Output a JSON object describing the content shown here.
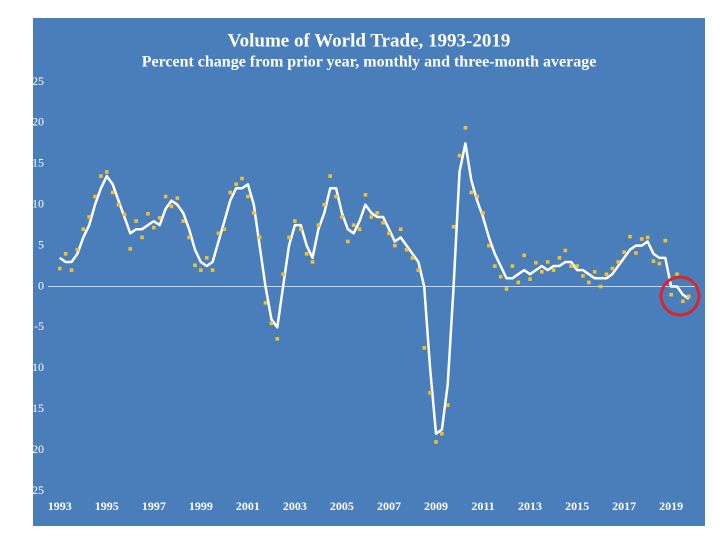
{
  "chart_data": {
    "type": "line",
    "title": "Volume of World Trade, 1993-2019",
    "subtitle": "Percent change from prior year, monthly and three-month average",
    "x": [
      1993,
      1993.25,
      1993.5,
      1993.75,
      1994,
      1994.25,
      1994.5,
      1994.75,
      1995,
      1995.25,
      1995.5,
      1995.75,
      1996,
      1996.25,
      1996.5,
      1996.75,
      1997,
      1997.25,
      1997.5,
      1997.75,
      1998,
      1998.25,
      1998.5,
      1998.75,
      1999,
      1999.25,
      1999.5,
      1999.75,
      2000,
      2000.25,
      2000.5,
      2000.75,
      2001,
      2001.25,
      2001.5,
      2001.75,
      2002,
      2002.25,
      2002.5,
      2002.75,
      2003,
      2003.25,
      2003.5,
      2003.75,
      2004,
      2004.25,
      2004.5,
      2004.75,
      2005,
      2005.25,
      2005.5,
      2005.75,
      2006,
      2006.25,
      2006.5,
      2006.75,
      2007,
      2007.25,
      2007.5,
      2007.75,
      2008,
      2008.25,
      2008.5,
      2008.75,
      2009,
      2009.25,
      2009.5,
      2009.75,
      2010,
      2010.25,
      2010.5,
      2010.75,
      2011,
      2011.25,
      2011.5,
      2011.75,
      2012,
      2012.25,
      2012.5,
      2012.75,
      2013,
      2013.25,
      2013.5,
      2013.75,
      2014,
      2014.25,
      2014.5,
      2014.75,
      2015,
      2015.25,
      2015.5,
      2015.75,
      2016,
      2016.25,
      2016.5,
      2016.75,
      2017,
      2017.25,
      2017.5,
      2017.75,
      2018,
      2018.25,
      2018.5,
      2018.75,
      2019,
      2019.25,
      2019.5,
      2019.75
    ],
    "series": [
      {
        "style": "line",
        "color": "#ffffff",
        "values": [
          3.5,
          3,
          3,
          4,
          6,
          7.5,
          10,
          12,
          13.5,
          12.5,
          10.5,
          8.5,
          6.5,
          7,
          7,
          7.5,
          8,
          7.5,
          9.5,
          10.5,
          10,
          9,
          7,
          4.5,
          3,
          2.5,
          3,
          5.5,
          8,
          10.5,
          12,
          12,
          12.5,
          10,
          5,
          0,
          -4,
          -5,
          0,
          5,
          7.5,
          7.5,
          5,
          3.5,
          7,
          9,
          12,
          12,
          9,
          7,
          6.5,
          8,
          10,
          9,
          8.5,
          8.5,
          7,
          5.5,
          6,
          5,
          4,
          3,
          0,
          -10,
          -18,
          -17.5,
          -12,
          0,
          14,
          17.5,
          13,
          10.5,
          8.5,
          6,
          4,
          2.5,
          1,
          1,
          1.5,
          2,
          1.5,
          2,
          2.5,
          2,
          2.5,
          2.5,
          3,
          3,
          2,
          2,
          1.5,
          1,
          1,
          1,
          1.5,
          2.5,
          3.5,
          4.5,
          5,
          5,
          5.5,
          4,
          3.5,
          3.5,
          0,
          0,
          -1,
          -1.5
        ]
      },
      {
        "style": "markers",
        "color": "#f2c12e",
        "values": [
          2.2,
          4,
          2,
          4.5,
          7,
          8.5,
          11,
          13.5,
          14,
          11.5,
          10,
          8.8,
          4.6,
          8,
          6,
          8.9,
          7.2,
          8.4,
          11,
          9.8,
          10.8,
          8,
          6,
          2.6,
          2,
          3.5,
          2,
          6.5,
          7,
          11.5,
          12.5,
          13.2,
          11,
          9,
          6,
          -2,
          -4.5,
          -6.4,
          1.5,
          6,
          8,
          7,
          4,
          3,
          7.5,
          10,
          13.5,
          11,
          8.5,
          5.5,
          7.5,
          7,
          11.2,
          8.5,
          9,
          7.8,
          6.5,
          5,
          7,
          4.5,
          3.5,
          2,
          -7.5,
          -13,
          -19,
          -18,
          -14.5,
          7.3,
          16,
          19.4,
          11.5,
          11,
          9,
          5,
          2.5,
          1.2,
          -0.3,
          2.5,
          0.5,
          3.8,
          0.9,
          2.9,
          1.8,
          3,
          2,
          3.5,
          4.4,
          2.5,
          2.5,
          1.3,
          0.5,
          1.8,
          0,
          1.5,
          2.2,
          3,
          4.2,
          6.1,
          4.1,
          5.8,
          6,
          3.1,
          2.8,
          5.6,
          -1,
          1.5,
          -1.8,
          -1.2
        ]
      }
    ],
    "xlim": [
      1992.5,
      2020.1
    ],
    "ylim": [
      -25,
      25
    ],
    "xticks": [
      1993,
      1995,
      1997,
      1999,
      2001,
      2003,
      2005,
      2007,
      2009,
      2011,
      2013,
      2015,
      2017,
      2019
    ],
    "yticks": [
      -25,
      -20,
      -15,
      -10,
      -5,
      0,
      5,
      10,
      15,
      20,
      25
    ]
  }
}
